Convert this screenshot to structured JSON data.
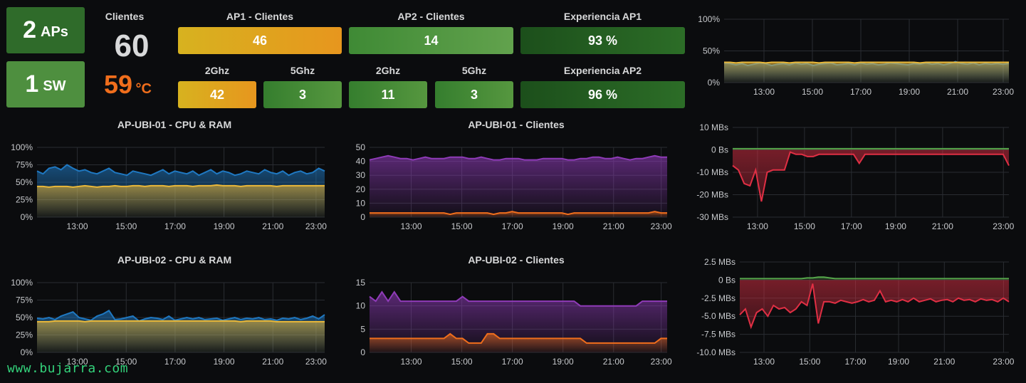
{
  "colors": {
    "bg": "#0b0c0e",
    "gold": "#d9a71e",
    "orange": "#f06e1c",
    "green_light": "#629e51",
    "green_dark": "#2f6b2a",
    "blue": "#1f78c1",
    "yellow_line": "#eab839",
    "purple": "#8f3bb8",
    "red": "#e02f44",
    "green_line": "#56a64b"
  },
  "stats": {
    "aps": {
      "value": "2",
      "unit": "APs"
    },
    "sw": {
      "value": "1",
      "unit": "SW"
    },
    "clientes_label": "Clientes",
    "clientes_value": "60",
    "temp_value": "59",
    "temp_unit": "°C"
  },
  "bars_row1": [
    {
      "label": "AP1 - Clientes",
      "value": "46"
    },
    {
      "label": "AP2 - Clientes",
      "value": "14"
    },
    {
      "label": "Experiencia AP1",
      "value": "93 %"
    }
  ],
  "bars_row2": [
    {
      "label": "2Ghz",
      "value": "42"
    },
    {
      "label": "5Ghz",
      "value": "3"
    },
    {
      "label": "2Ghz",
      "value": "11"
    },
    {
      "label": "5Ghz",
      "value": "3"
    },
    {
      "label": "Experiencia AP2",
      "value": "96 %"
    }
  ],
  "watermark": "www.bujarra.com",
  "chart_data": [
    {
      "id": "cpu1",
      "type": "area",
      "title": "AP-UBI-01 - CPU & RAM",
      "x_ticks": [
        "13:00",
        "15:00",
        "17:00",
        "19:00",
        "21:00",
        "23:00"
      ],
      "y_ticks": [
        "100%",
        "75%",
        "50%",
        "25%",
        "0%"
      ],
      "ylim": [
        0,
        100
      ],
      "series": [
        {
          "color": "#1f78c1",
          "values": [
            66,
            62,
            70,
            72,
            68,
            75,
            70,
            66,
            68,
            64,
            62,
            66,
            70,
            64,
            62,
            60,
            66,
            64,
            62,
            60,
            64,
            68,
            62,
            66,
            64,
            62,
            66,
            60,
            64,
            68,
            62,
            66,
            64,
            60,
            62,
            66,
            64,
            62,
            68,
            64,
            62,
            66,
            60,
            64,
            66,
            62,
            64,
            70,
            66
          ]
        },
        {
          "color": "#eab839",
          "values": [
            44,
            44,
            43,
            44,
            44,
            44,
            43,
            44,
            45,
            44,
            43,
            44,
            44,
            45,
            44,
            44,
            45,
            45,
            44,
            45,
            45,
            45,
            44,
            45,
            45,
            45,
            44,
            45,
            45,
            45,
            46,
            45,
            45,
            45,
            44,
            45,
            45,
            45,
            45,
            45,
            44,
            45,
            45,
            45,
            45,
            45,
            45,
            45,
            45
          ]
        }
      ]
    },
    {
      "id": "cli1",
      "type": "area",
      "title": "AP-UBI-01 - Clientes",
      "x_ticks": [
        "13:00",
        "15:00",
        "17:00",
        "19:00",
        "21:00",
        "23:00"
      ],
      "y_ticks": [
        "50",
        "40",
        "30",
        "20",
        "10",
        "0"
      ],
      "ylim": [
        0,
        50
      ],
      "series": [
        {
          "color": "#8f3bb8",
          "values": [
            41,
            42,
            43,
            44,
            43,
            42,
            42,
            41,
            42,
            43,
            42,
            42,
            42,
            43,
            43,
            43,
            42,
            42,
            43,
            42,
            41,
            41,
            42,
            42,
            42,
            41,
            41,
            41,
            42,
            42,
            42,
            42,
            41,
            41,
            42,
            42,
            43,
            43,
            42,
            42,
            43,
            42,
            41,
            42,
            42,
            43,
            44,
            43,
            43
          ]
        },
        {
          "color": "#f06e1c",
          "values": [
            3,
            3,
            3,
            3,
            3,
            3,
            3,
            3,
            3,
            3,
            3,
            3,
            3,
            2,
            3,
            3,
            3,
            3,
            3,
            3,
            2,
            3,
            3,
            4,
            3,
            3,
            3,
            3,
            3,
            3,
            3,
            3,
            2,
            3,
            3,
            3,
            3,
            3,
            3,
            3,
            3,
            3,
            3,
            3,
            3,
            3,
            4,
            3,
            3
          ]
        }
      ]
    },
    {
      "id": "cpu2",
      "type": "area",
      "title": "AP-UBI-02 - CPU & RAM",
      "x_ticks": [
        "13:00",
        "15:00",
        "17:00",
        "19:00",
        "21:00",
        "23:00"
      ],
      "y_ticks": [
        "100%",
        "75%",
        "50%",
        "25%",
        "0%"
      ],
      "ylim": [
        0,
        100
      ],
      "series": [
        {
          "color": "#1f78c1",
          "values": [
            49,
            48,
            50,
            47,
            52,
            55,
            58,
            50,
            48,
            46,
            52,
            55,
            60,
            47,
            48,
            50,
            52,
            45,
            48,
            50,
            49,
            47,
            52,
            46,
            48,
            50,
            48,
            50,
            47,
            48,
            49,
            46,
            48,
            50,
            47,
            49,
            48,
            50,
            47,
            48,
            46,
            49,
            48,
            50,
            47,
            49,
            52,
            48,
            54
          ]
        },
        {
          "color": "#eab839",
          "values": [
            44,
            44,
            44,
            45,
            45,
            45,
            45,
            45,
            44,
            45,
            45,
            45,
            45,
            45,
            45,
            45,
            45,
            45,
            45,
            45,
            45,
            45,
            45,
            45,
            45,
            45,
            45,
            45,
            45,
            45,
            45,
            45,
            45,
            45,
            44,
            45,
            45,
            45,
            45,
            45,
            44,
            44,
            44,
            44,
            44,
            44,
            44,
            44,
            44
          ]
        }
      ]
    },
    {
      "id": "cli2",
      "type": "area",
      "title": "AP-UBI-02 - Clientes",
      "x_ticks": [
        "13:00",
        "15:00",
        "17:00",
        "19:00",
        "21:00",
        "23:00"
      ],
      "y_ticks": [
        "15",
        "10",
        "5",
        "0"
      ],
      "ylim": [
        0,
        15
      ],
      "series": [
        {
          "color": "#8f3bb8",
          "values": [
            12,
            11,
            13,
            11,
            13,
            11,
            11,
            11,
            11,
            11,
            11,
            11,
            11,
            11,
            11,
            12,
            11,
            11,
            11,
            11,
            11,
            11,
            11,
            11,
            11,
            11,
            11,
            11,
            11,
            11,
            11,
            11,
            11,
            11,
            10,
            10,
            10,
            10,
            10,
            10,
            10,
            10,
            10,
            10,
            11,
            11,
            11,
            11,
            11
          ]
        },
        {
          "color": "#f06e1c",
          "values": [
            3,
            3,
            3,
            3,
            3,
            3,
            3,
            3,
            3,
            3,
            3,
            3,
            3,
            4,
            3,
            3,
            2,
            2,
            2,
            4,
            4,
            3,
            3,
            3,
            3,
            3,
            3,
            3,
            3,
            3,
            3,
            3,
            3,
            3,
            3,
            2,
            2,
            2,
            2,
            2,
            2,
            2,
            2,
            2,
            2,
            2,
            2,
            3,
            3
          ]
        }
      ]
    },
    {
      "id": "pct",
      "type": "area",
      "title": "",
      "x_ticks": [
        "13:00",
        "15:00",
        "17:00",
        "19:00",
        "21:00",
        "23:00"
      ],
      "y_ticks": [
        "100%",
        "50%",
        "0%"
      ],
      "ylim": [
        0,
        100
      ],
      "series": [
        {
          "color": "#1f78c1",
          "values": [
            31,
            30,
            28,
            30,
            27,
            29,
            31,
            30,
            27,
            29,
            30,
            28,
            31,
            29,
            30,
            27,
            29,
            30,
            31,
            28,
            29,
            30,
            28,
            31,
            29,
            30,
            28,
            29,
            31,
            30,
            29,
            28,
            30,
            29,
            31,
            29,
            30,
            28,
            30,
            33,
            30,
            29,
            31,
            28,
            30,
            29,
            30,
            29,
            30
          ]
        },
        {
          "color": "#eab839",
          "values": [
            32,
            32,
            31,
            32,
            32,
            32,
            32,
            31,
            32,
            32,
            32,
            31,
            32,
            32,
            32,
            32,
            31,
            32,
            32,
            32,
            32,
            32,
            31,
            32,
            32,
            32,
            32,
            32,
            32,
            32,
            32,
            32,
            32,
            31,
            32,
            32,
            32,
            32,
            32,
            32,
            32,
            32,
            32,
            32,
            32,
            32,
            32,
            32,
            32
          ]
        }
      ]
    },
    {
      "id": "mb1",
      "type": "area",
      "title": "",
      "x_ticks": [
        "13:00",
        "15:00",
        "17:00",
        "19:00",
        "21:00",
        "23:00"
      ],
      "y_ticks": [
        "10 MBs",
        "0 Bs",
        "-10 MBs",
        "-20 MBs",
        "-30 MBs"
      ],
      "ylim": [
        -30,
        10
      ],
      "series": [
        {
          "color": "#56a64b",
          "values": [
            0.5,
            0.5,
            0.5,
            0.5,
            0.5,
            0.5,
            0.5,
            0.5,
            0.5,
            0.5,
            0.5,
            0.5,
            0.5,
            0.5,
            0.5,
            0.5,
            0.5,
            0.5,
            0.5,
            0.5,
            0.5,
            0.5,
            0.5,
            0.5,
            0.5,
            0.5,
            0.5,
            0.5,
            0.5,
            0.5,
            0.5,
            0.5,
            0.5,
            0.5,
            0.5,
            0.5,
            0.5,
            0.5,
            0.5,
            0.5,
            0.5,
            0.5,
            0.5,
            0.5,
            0.5,
            0.5,
            0.5,
            0.5,
            0.5
          ]
        },
        {
          "color": "#e02f44",
          "values": [
            -7,
            -9,
            -15,
            -16,
            -9,
            -23,
            -10,
            -9,
            -9,
            -9,
            -1,
            -2,
            -2,
            -3,
            -3,
            -2,
            -2,
            -2,
            -2,
            -2,
            -2,
            -2,
            -6,
            -2,
            -2,
            -2,
            -2,
            -2,
            -2,
            -2,
            -2,
            -2,
            -2,
            -2,
            -2,
            -2,
            -2,
            -2,
            -2,
            -2,
            -2,
            -2,
            -2,
            -2,
            -2,
            -2,
            -2,
            -2,
            -7
          ]
        }
      ]
    },
    {
      "id": "mb2",
      "type": "area",
      "title": "",
      "x_ticks": [
        "13:00",
        "15:00",
        "17:00",
        "19:00",
        "21:00",
        "23:00"
      ],
      "y_ticks": [
        "2.5 MBs",
        "0 Bs",
        "-2.5 MBs",
        "-5.0 MBs",
        "-7.5 MBs",
        "-10.0 MBs"
      ],
      "ylim": [
        -10,
        2.5
      ],
      "series": [
        {
          "color": "#56a64b",
          "values": [
            0.2,
            0.2,
            0.2,
            0.2,
            0.2,
            0.2,
            0.2,
            0.2,
            0.2,
            0.2,
            0.2,
            0.2,
            0.3,
            0.3,
            0.4,
            0.4,
            0.3,
            0.2,
            0.2,
            0.2,
            0.2,
            0.2,
            0.2,
            0.2,
            0.2,
            0.2,
            0.2,
            0.2,
            0.2,
            0.2,
            0.2,
            0.2,
            0.2,
            0.2,
            0.2,
            0.2,
            0.2,
            0.2,
            0.2,
            0.2,
            0.2,
            0.2,
            0.2,
            0.2,
            0.2,
            0.2,
            0.2,
            0.2,
            0.2
          ]
        },
        {
          "color": "#e02f44",
          "values": [
            -4.8,
            -4,
            -6.5,
            -4.5,
            -4,
            -5,
            -3.5,
            -4,
            -3.8,
            -4.5,
            -4,
            -3,
            -3.5,
            -0.5,
            -6,
            -3,
            -3,
            -3.2,
            -2.8,
            -3,
            -3.2,
            -3,
            -2.7,
            -3,
            -2.8,
            -1.5,
            -3,
            -2.8,
            -3,
            -2.7,
            -3,
            -2.5,
            -3,
            -2.8,
            -2.6,
            -3,
            -2.8,
            -2.7,
            -3,
            -2.5,
            -2.8,
            -2.7,
            -3,
            -2.6,
            -2.8,
            -2.7,
            -3,
            -2.5,
            -3
          ]
        }
      ]
    }
  ]
}
